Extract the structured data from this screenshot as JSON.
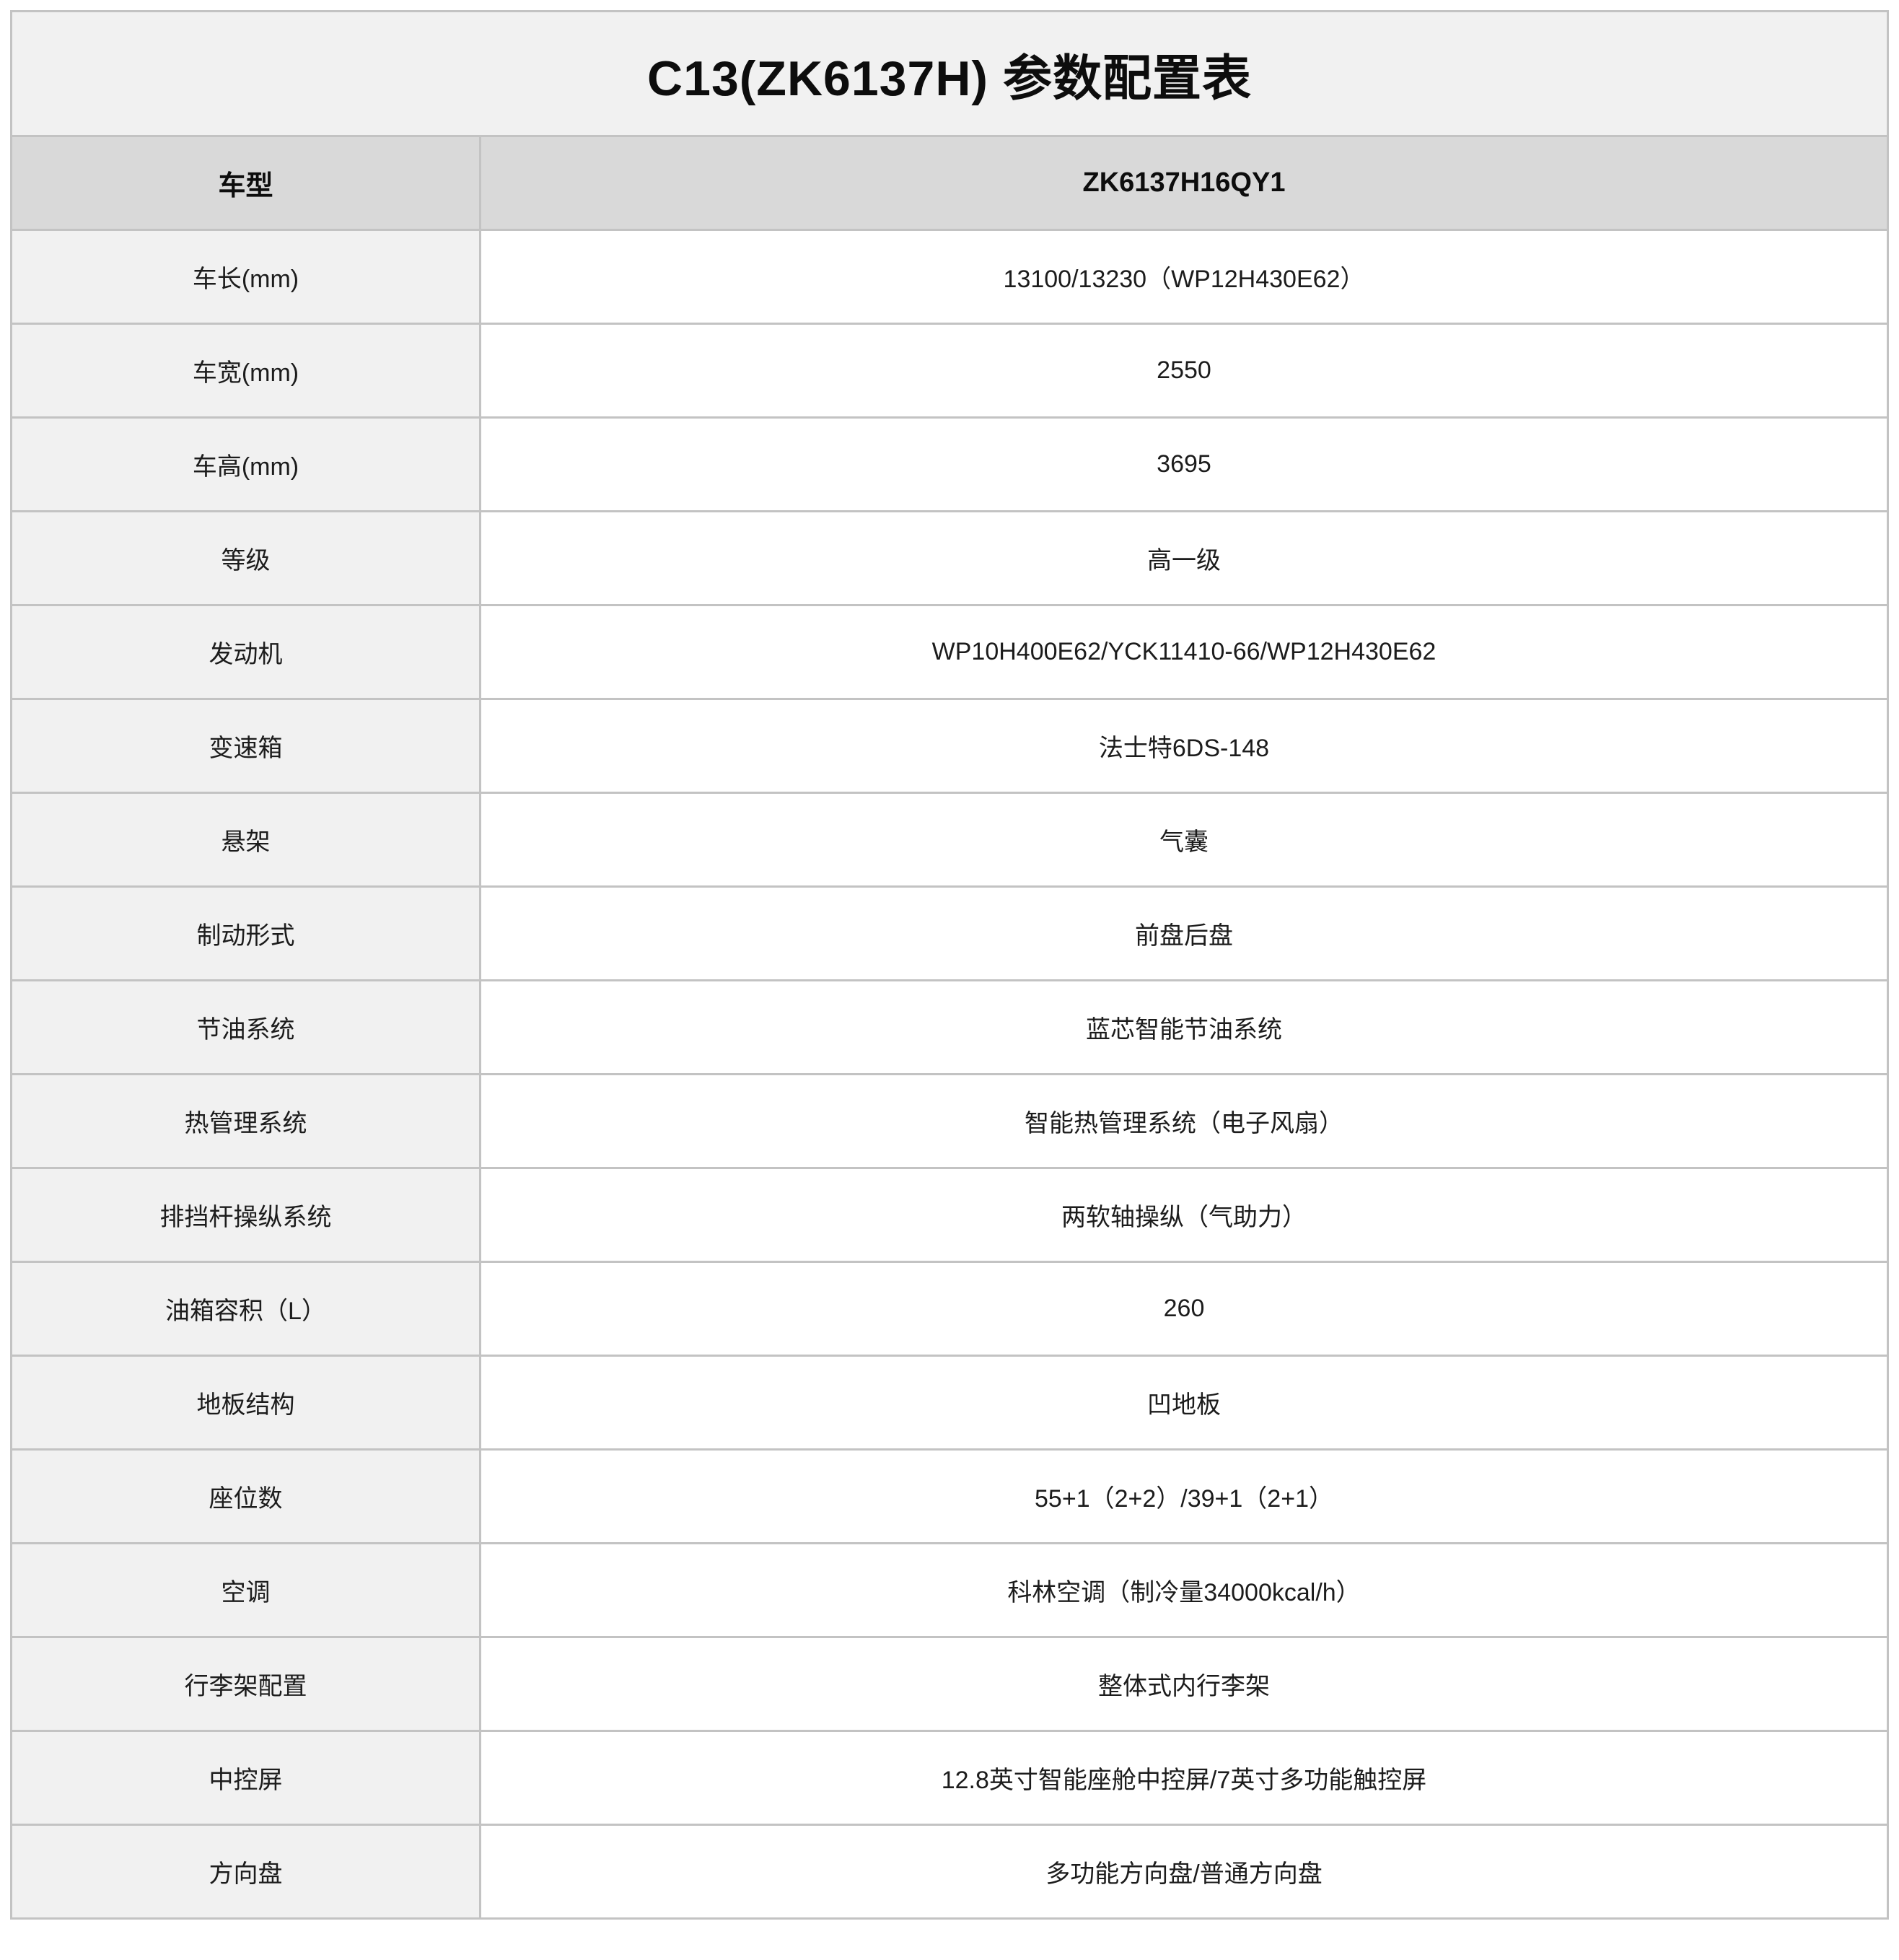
{
  "title": "C13(ZK6137H) 参数配置表",
  "table": {
    "header": {
      "label": "车型",
      "value": "ZK6137H16QY1"
    },
    "rows": [
      {
        "label": "车长(mm)",
        "value": "13100/13230（WP12H430E62）"
      },
      {
        "label": "车宽(mm)",
        "value": "2550"
      },
      {
        "label": "车高(mm)",
        "value": "3695"
      },
      {
        "label": "等级",
        "value": "高一级"
      },
      {
        "label": "发动机",
        "value": "WP10H400E62/YCK11410-66/WP12H430E62"
      },
      {
        "label": "变速箱",
        "value": "法士特6DS-148"
      },
      {
        "label": "悬架",
        "value": "气囊"
      },
      {
        "label": "制动形式",
        "value": "前盘后盘"
      },
      {
        "label": "节油系统",
        "value": "蓝芯智能节油系统"
      },
      {
        "label": "热管理系统",
        "value": "智能热管理系统（电子风扇）"
      },
      {
        "label": "排挡杆操纵系统",
        "value": "两软轴操纵（气助力）"
      },
      {
        "label": "油箱容积（L）",
        "value": "260"
      },
      {
        "label": "地板结构",
        "value": "凹地板"
      },
      {
        "label": "座位数",
        "value": "55+1（2+2）/39+1（2+1）"
      },
      {
        "label": "空调",
        "value": "科林空调（制冷量34000kcal/h）"
      },
      {
        "label": "行李架配置",
        "value": "整体式内行李架"
      },
      {
        "label": "中控屏",
        "value": "12.8英寸智能座舱中控屏/7英寸多功能触控屏"
      },
      {
        "label": "方向盘",
        "value": "多功能方向盘/普通方向盘"
      }
    ]
  },
  "colors": {
    "title_bg": "#f1f1f1",
    "header_bg": "#d9d9d9",
    "label_bg": "#f1f1f1",
    "value_bg": "#ffffff",
    "border": "#c3c3c3",
    "text": "#1c1c1c"
  }
}
